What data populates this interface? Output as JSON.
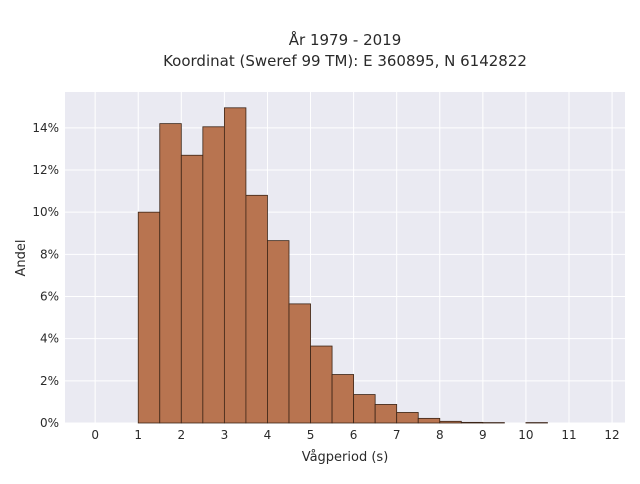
{
  "chart_data": {
    "type": "bar",
    "title": "År 1979 - 2019",
    "subtitle": "Koordinat (Sweref 99 TM): E 360895, N 6142822",
    "xlabel": "Vågperiod (s)",
    "ylabel": "Andel",
    "xlim": [
      -0.7,
      12.3
    ],
    "ylim": [
      0,
      15.7
    ],
    "x_ticks": [
      0,
      1,
      2,
      3,
      4,
      5,
      6,
      7,
      8,
      9,
      10,
      11,
      12
    ],
    "y_ticks": [
      0,
      2,
      4,
      6,
      8,
      10,
      12,
      14
    ],
    "y_tick_suffix": "%",
    "grid": true,
    "bin_width": 0.5,
    "bins": [
      {
        "start": 1.0,
        "value": 10.0
      },
      {
        "start": 1.5,
        "value": 14.2
      },
      {
        "start": 2.0,
        "value": 12.7
      },
      {
        "start": 2.5,
        "value": 14.05
      },
      {
        "start": 3.0,
        "value": 14.95
      },
      {
        "start": 3.5,
        "value": 10.8
      },
      {
        "start": 4.0,
        "value": 8.65
      },
      {
        "start": 4.5,
        "value": 5.65
      },
      {
        "start": 5.0,
        "value": 3.65
      },
      {
        "start": 5.5,
        "value": 2.3
      },
      {
        "start": 6.0,
        "value": 1.35
      },
      {
        "start": 6.5,
        "value": 0.88
      },
      {
        "start": 7.0,
        "value": 0.5
      },
      {
        "start": 7.5,
        "value": 0.22
      },
      {
        "start": 8.0,
        "value": 0.08
      },
      {
        "start": 8.5,
        "value": 0.03
      },
      {
        "start": 9.0,
        "value": 0.02
      },
      {
        "start": 10.0,
        "value": 0.02
      }
    ],
    "colors": {
      "bar_fill": "#b87450",
      "bar_stroke": "#3b2416",
      "plot_bg": "#eaeaf2",
      "grid": "#ffffff"
    }
  }
}
